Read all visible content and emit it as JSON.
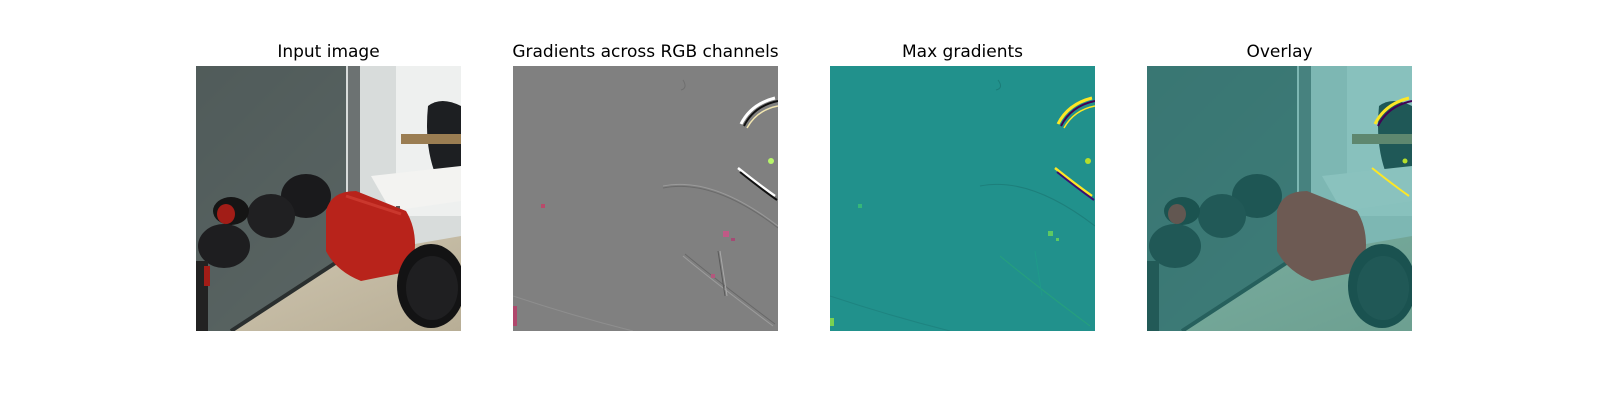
{
  "figure": {
    "panels": [
      {
        "title": "Input image"
      },
      {
        "title": "Gradients across RGB channels"
      },
      {
        "title": "Max gradients"
      },
      {
        "title": "Overlay"
      }
    ]
  },
  "colors": {
    "background": "#ffffff",
    "gradient_gray": "#808080",
    "max_gradient_teal": "#21918c",
    "robot_red": "#b8231b",
    "overlay_tint": "#2a8c8a"
  }
}
